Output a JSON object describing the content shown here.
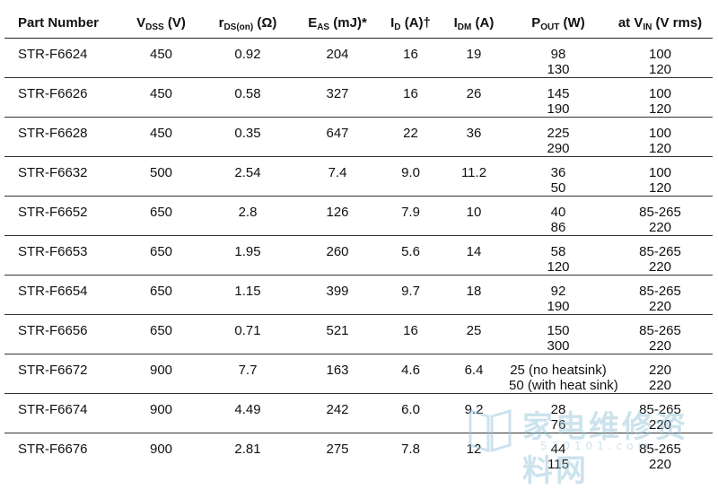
{
  "headers": {
    "part_number": "Part Number",
    "vdss": {
      "main": "V",
      "sub": "DSS",
      "unit": " (V)"
    },
    "rds": {
      "main": "r",
      "sub": "DS(on)",
      "unit": " (Ω)"
    },
    "eas": {
      "main": "E",
      "sub": "AS",
      "unit": " (mJ)*"
    },
    "id": {
      "main": "I",
      "sub": "D",
      "unit": " (A)†"
    },
    "idm": {
      "main": "I",
      "sub": "DM",
      "unit": " (A)"
    },
    "pout": {
      "main": "P",
      "sub": "OUT",
      "unit": " (W)"
    },
    "vin": {
      "pre": "at V",
      "sub": "IN",
      "unit": " (V rms)"
    }
  },
  "rows": [
    {
      "part": "STR-F6624",
      "vdss": "450",
      "rds": "0.92",
      "eas": "204",
      "id": "16",
      "idm": "19",
      "pout": [
        "98",
        "130"
      ],
      "vin": [
        "100",
        "120"
      ]
    },
    {
      "part": "STR-F6626",
      "vdss": "450",
      "rds": "0.58",
      "eas": "327",
      "id": "16",
      "idm": "26",
      "pout": [
        "145",
        "190"
      ],
      "vin": [
        "100",
        "120"
      ]
    },
    {
      "part": "STR-F6628",
      "vdss": "450",
      "rds": "0.35",
      "eas": "647",
      "id": "22",
      "idm": "36",
      "pout": [
        "225",
        "290"
      ],
      "vin": [
        "100",
        "120"
      ]
    },
    {
      "part": "STR-F6632",
      "vdss": "500",
      "rds": "2.54",
      "eas": "7.4",
      "id": "9.0",
      "idm": "11.2",
      "pout": [
        "36",
        "50"
      ],
      "vin": [
        "100",
        "120"
      ]
    },
    {
      "part": "STR-F6652",
      "vdss": "650",
      "rds": "2.8",
      "eas": "126",
      "id": "7.9",
      "idm": "10",
      "pout": [
        "40",
        "86"
      ],
      "vin": [
        "85-265",
        "220"
      ]
    },
    {
      "part": "STR-F6653",
      "vdss": "650",
      "rds": "1.95",
      "eas": "260",
      "id": "5.6",
      "idm": "14",
      "pout": [
        "58",
        "120"
      ],
      "vin": [
        "85-265",
        "220"
      ]
    },
    {
      "part": "STR-F6654",
      "vdss": "650",
      "rds": "1.15",
      "eas": "399",
      "id": "9.7",
      "idm": "18",
      "pout": [
        "92",
        "190"
      ],
      "vin": [
        "85-265",
        "220"
      ]
    },
    {
      "part": "STR-F6656",
      "vdss": "650",
      "rds": "0.71",
      "eas": "521",
      "id": "16",
      "idm": "25",
      "pout": [
        "150",
        "300"
      ],
      "vin": [
        "85-265",
        "220"
      ]
    },
    {
      "part": "STR-F6672",
      "vdss": "900",
      "rds": "7.7",
      "eas": "163",
      "id": "4.6",
      "idm": "6.4",
      "pout": [
        "25 (no heatsink)",
        "50 (with heat sink)"
      ],
      "vin": [
        "220",
        "220"
      ]
    },
    {
      "part": "STR-F6674",
      "vdss": "900",
      "rds": "4.49",
      "eas": "242",
      "id": "6.0",
      "idm": "9.2",
      "pout": [
        "28",
        "76"
      ],
      "vin": [
        "85-265",
        "220"
      ]
    },
    {
      "part": "STR-F6676",
      "vdss": "900",
      "rds": "2.81",
      "eas": "275",
      "id": "7.8",
      "idm": "12",
      "pout": [
        "44",
        "115"
      ],
      "vin": [
        "85-265",
        "220"
      ]
    }
  ],
  "watermark": {
    "text": "家电维修资料网",
    "sub": "520101.com",
    "color": "#8fc3d8"
  }
}
